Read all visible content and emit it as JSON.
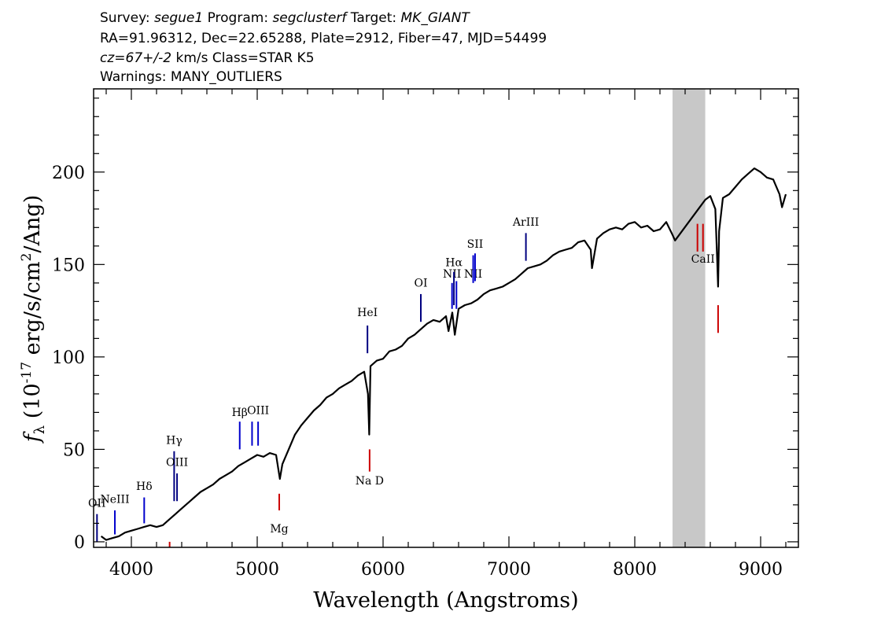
{
  "header": {
    "line1": [
      {
        "text": "Survey: ",
        "italic": false
      },
      {
        "text": "segue1",
        "italic": true
      },
      {
        "text": " Program: ",
        "italic": false
      },
      {
        "text": "segclusterf",
        "italic": true
      },
      {
        "text": " Target: ",
        "italic": false
      },
      {
        "text": "MK_GIANT",
        "italic": true
      }
    ],
    "line2": "RA=91.96312, Dec=22.65288, Plate=2912, Fiber=47, MJD=54499",
    "line3": [
      {
        "text": "cz=67+/-2",
        "italic": true
      },
      {
        "text": " km/s Class=STAR K5",
        "italic": false
      }
    ],
    "line4": "Warnings: MANY_OUTLIERS"
  },
  "chart_data": {
    "type": "line",
    "xlabel": "Wavelength (Angstroms)",
    "ylabel_parts": {
      "f": "f",
      "lambda": "λ",
      "prefix": " (10",
      "exp1": "-17",
      "mid": " erg/s/cm",
      "exp2": "2",
      "suffix": "/Ang)"
    },
    "xlim": [
      3700,
      9300
    ],
    "ylim": [
      -3,
      245
    ],
    "x_ticks": [
      4000,
      5000,
      6000,
      7000,
      8000,
      9000
    ],
    "y_ticks": [
      0,
      50,
      100,
      150,
      200
    ],
    "masked_region": [
      8300,
      8560
    ],
    "series": [
      {
        "x": [
          3760,
          3800,
          3850,
          3900,
          3950,
          4000,
          4050,
          4100,
          4150,
          4200,
          4250,
          4300,
          4350,
          4400,
          4450,
          4500,
          4550,
          4600,
          4650,
          4700,
          4750,
          4800,
          4850,
          4900,
          4950,
          5000,
          5050,
          5100,
          5150,
          5180,
          5200,
          5250,
          5300,
          5350,
          5400,
          5450,
          5500,
          5550,
          5600,
          5650,
          5700,
          5750,
          5800,
          5850,
          5880,
          5890,
          5900,
          5950,
          6000,
          6050,
          6100,
          6150,
          6200,
          6250,
          6300,
          6350,
          6400,
          6450,
          6500,
          6520,
          6550,
          6570,
          6600,
          6650,
          6700,
          6750,
          6800,
          6850,
          6900,
          6950,
          7000,
          7050,
          7100,
          7150,
          7200,
          7250,
          7300,
          7350,
          7400,
          7450,
          7500,
          7550,
          7600,
          7650,
          7660,
          7700,
          7750,
          7800,
          7850,
          7900,
          7950,
          8000,
          8050,
          8100,
          8150,
          8200,
          8250,
          8300,
          8320,
          8560,
          8600,
          8640,
          8655,
          8662,
          8670,
          8700,
          8750,
          8800,
          8850,
          8900,
          8950,
          9000,
          9050,
          9100,
          9150,
          9170,
          9200
        ],
        "y": [
          3,
          1,
          2,
          3,
          5,
          6,
          7,
          8,
          9,
          8,
          9,
          12,
          15,
          18,
          21,
          24,
          27,
          29,
          31,
          34,
          36,
          38,
          41,
          43,
          45,
          47,
          46,
          48,
          47,
          34,
          42,
          50,
          58,
          63,
          67,
          71,
          74,
          78,
          80,
          83,
          85,
          87,
          90,
          92,
          80,
          58,
          95,
          98,
          99,
          103,
          104,
          106,
          110,
          112,
          115,
          118,
          120,
          119,
          122,
          114,
          124,
          112,
          126,
          128,
          129,
          131,
          134,
          136,
          137,
          138,
          140,
          142,
          145,
          148,
          149,
          150,
          152,
          155,
          157,
          158,
          159,
          162,
          163,
          158,
          148,
          164,
          167,
          169,
          170,
          169,
          172,
          173,
          170,
          171,
          168,
          169,
          173,
          166,
          163,
          185,
          187,
          180,
          152,
          138,
          168,
          186,
          188,
          192,
          196,
          199,
          202,
          200,
          197,
          196,
          188,
          181,
          188
        ]
      }
    ],
    "lines": [
      {
        "x": 3727,
        "label": "OII",
        "color": "#000080",
        "y1": 0,
        "y2": 15,
        "label_y": 19
      },
      {
        "x": 3869,
        "label": "NeIII",
        "color": "#0000cc",
        "y1": 4,
        "y2": 17,
        "label_y": 21
      },
      {
        "x": 4102,
        "label": "Hδ",
        "color": "#0000cc",
        "y1": 10,
        "y2": 24,
        "label_y": 28
      },
      {
        "x": 4340,
        "label": "Hγ",
        "color": "#000080",
        "y1": 22,
        "y2": 49,
        "label_y": 53
      },
      {
        "x": 4363,
        "label": "OIII",
        "color": "#000080",
        "y1": 22,
        "y2": 37,
        "label_y": 41
      },
      {
        "x": 4861,
        "label": "Hβ",
        "color": "#0000cc",
        "y1": 50,
        "y2": 65,
        "label_y": 68
      },
      {
        "x": 4959,
        "label": "",
        "color": "#0000cc",
        "y1": 52,
        "y2": 65,
        "label_y": 0
      },
      {
        "x": 5007,
        "label": "OIII",
        "color": "#0000cc",
        "y1": 52,
        "y2": 65,
        "label_y": 69
      },
      {
        "x": 5876,
        "label": "HeI",
        "color": "#000080",
        "y1": 102,
        "y2": 117,
        "label_y": 122
      },
      {
        "x": 6300,
        "label": "OI",
        "color": "#000080",
        "y1": 119,
        "y2": 134,
        "label_y": 138
      },
      {
        "x": 6548,
        "label": "NII",
        "color": "#0000cc",
        "y1": 126,
        "y2": 140,
        "label_y": 143
      },
      {
        "x": 6563,
        "label": "Hα",
        "color": "#000080",
        "y1": 128,
        "y2": 146,
        "label_y": 149
      },
      {
        "x": 6583,
        "label": "",
        "color": "#0000cc",
        "y1": 126,
        "y2": 141,
        "label_y": 0
      },
      {
        "x": 6716,
        "label": "NII",
        "color": "#0000cc",
        "y1": 140,
        "y2": 155,
        "label_y": 143
      },
      {
        "x": 6731,
        "label": "SII",
        "color": "#0000cc",
        "y1": 141,
        "y2": 156,
        "label_y": 159
      },
      {
        "x": 7135,
        "label": "ArIII",
        "color": "#000080",
        "y1": 152,
        "y2": 167,
        "label_y": 171
      },
      {
        "x": 4304,
        "label": "",
        "color": "#cc0000",
        "y1": -3,
        "y2": 0,
        "label_y": 0
      },
      {
        "x": 5175,
        "label": "Mg",
        "color": "#cc0000",
        "y1": 17,
        "y2": 26,
        "label_y": 5
      },
      {
        "x": 5893,
        "label": "Na D",
        "color": "#cc0000",
        "y1": 38,
        "y2": 50,
        "label_y": 31
      },
      {
        "x": 8498,
        "label": "",
        "color": "#cc0000",
        "y1": 157,
        "y2": 172,
        "label_y": 0
      },
      {
        "x": 8542,
        "label": "CaII",
        "color": "#cc0000",
        "y1": 157,
        "y2": 172,
        "label_y": 151
      },
      {
        "x": 8662,
        "label": "",
        "color": "#cc0000",
        "y1": 113,
        "y2": 128,
        "label_y": 0
      }
    ]
  }
}
